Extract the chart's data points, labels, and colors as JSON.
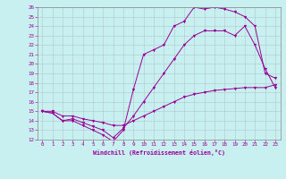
{
  "xlabel": "Windchill (Refroidissement éolien,°C)",
  "bg_color": "#c8f0f0",
  "line_color": "#990099",
  "xlim": [
    -0.5,
    23.5
  ],
  "ylim": [
    12,
    26
  ],
  "yticks": [
    12,
    13,
    14,
    15,
    16,
    17,
    18,
    19,
    20,
    21,
    22,
    23,
    24,
    25,
    26
  ],
  "xticks": [
    0,
    1,
    2,
    3,
    4,
    5,
    6,
    7,
    8,
    9,
    10,
    11,
    12,
    13,
    14,
    15,
    16,
    17,
    18,
    19,
    20,
    21,
    22,
    23
  ],
  "line1_x": [
    0,
    1,
    2,
    3,
    4,
    5,
    6,
    7,
    8,
    9,
    10,
    11,
    12,
    13,
    14,
    15,
    16,
    17,
    18,
    19,
    20,
    21,
    22,
    23
  ],
  "line1_y": [
    15,
    14.8,
    14.0,
    14.0,
    13.5,
    13.0,
    12.5,
    11.8,
    13.0,
    17.3,
    21.0,
    21.5,
    22.0,
    24.0,
    24.5,
    26.0,
    25.8,
    26.0,
    25.8,
    25.5,
    25.0,
    24.0,
    19.0,
    18.5
  ],
  "line2_x": [
    0,
    1,
    2,
    3,
    4,
    5,
    6,
    7,
    8,
    9,
    10,
    11,
    12,
    13,
    14,
    15,
    16,
    17,
    18,
    19,
    20,
    21,
    22,
    23
  ],
  "line2_y": [
    15,
    14.8,
    14.0,
    14.2,
    13.8,
    13.4,
    13.0,
    12.2,
    13.2,
    14.5,
    16.0,
    17.5,
    19.0,
    20.5,
    22.0,
    23.0,
    23.5,
    23.5,
    23.5,
    23.0,
    24.0,
    22.0,
    19.5,
    17.5
  ],
  "line3_x": [
    0,
    1,
    2,
    3,
    4,
    5,
    6,
    7,
    8,
    9,
    10,
    11,
    12,
    13,
    14,
    15,
    16,
    17,
    18,
    19,
    20,
    21,
    22,
    23
  ],
  "line3_y": [
    15,
    15.0,
    14.5,
    14.5,
    14.2,
    14.0,
    13.8,
    13.5,
    13.5,
    14.0,
    14.5,
    15.0,
    15.5,
    16.0,
    16.5,
    16.8,
    17.0,
    17.2,
    17.3,
    17.4,
    17.5,
    17.5,
    17.5,
    17.8
  ]
}
